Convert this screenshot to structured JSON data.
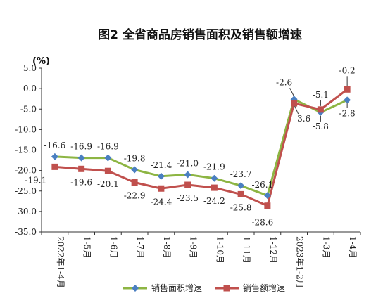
{
  "chart_data": {
    "type": "line",
    "title": "图2 全省商品房销售面积及销售额增速",
    "ylabel": "(%)",
    "ylim": [
      -35,
      5
    ],
    "yticks": [
      "5.0",
      "0.0",
      "-5.0",
      "-10.0",
      "-15.0",
      "-20.0",
      "-25.0",
      "-30.0",
      "-35.0"
    ],
    "categories": [
      "2022年1-4月",
      "1-5月",
      "1-6月",
      "1-7月",
      "1-8月",
      "1-9月",
      "1-10月",
      "1-11月",
      "1-12月",
      "2023年1-2月",
      "1-3月",
      "1-4月"
    ],
    "series": [
      {
        "name": "销售面积增速",
        "color": "#8db543",
        "marker": "diamond",
        "marker_color": "#4a7fc1",
        "values": [
          -16.6,
          -16.9,
          -16.9,
          -19.8,
          -21.4,
          -21.0,
          -21.9,
          -23.7,
          -26.1,
          -2.6,
          -5.8,
          -2.8
        ],
        "labels": [
          "-16.6",
          "-16.9",
          "-16.9",
          "-19.8",
          "-21.4",
          "-21.0",
          "-21.9",
          "-23.7",
          "-26.1",
          "-2.6",
          "-5.8",
          "-2.8"
        ]
      },
      {
        "name": "销售额增速",
        "color": "#c0504d",
        "marker": "square",
        "marker_color": "#c0504d",
        "values": [
          -19.1,
          -19.6,
          -20.1,
          -22.9,
          -24.4,
          -23.5,
          -24.2,
          -25.8,
          -28.6,
          -3.6,
          -5.1,
          -0.2
        ],
        "labels": [
          "-19.1",
          "-19.6",
          "-20.1",
          "-22.9",
          "-24.4",
          "-23.5",
          "-24.2",
          "-25.8",
          "-28.6",
          "-3.6",
          "-5.1",
          "-0.2"
        ]
      }
    ],
    "legend_position": "bottom",
    "grid": false
  }
}
